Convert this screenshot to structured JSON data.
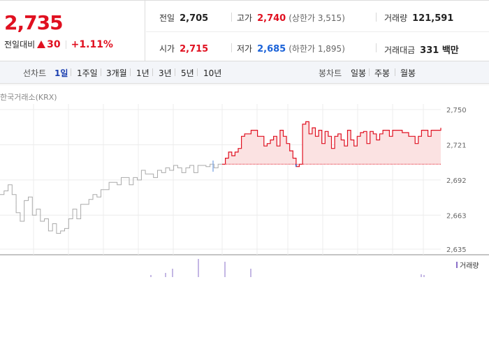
{
  "summary": {
    "current_price": "2,735",
    "change_label": "전일대비",
    "change_value": "30",
    "change_rate": "+1.11%",
    "colors": {
      "up": "#e01020",
      "down": "#1b62d8"
    }
  },
  "stats": {
    "prev_close": {
      "label": "전일",
      "value": "2,705"
    },
    "high": {
      "label": "고가",
      "value": "2,740",
      "sub": "(상한가 3,515)"
    },
    "volume": {
      "label": "거래량",
      "value": "121,591"
    },
    "open": {
      "label": "시가",
      "value": "2,715"
    },
    "low": {
      "label": "저가",
      "value": "2,685",
      "sub": "(하한가 1,895)"
    },
    "amount": {
      "label": "거래대금",
      "value": "331 백만"
    }
  },
  "line_tabs": {
    "title": "선차트",
    "items": [
      "1일",
      "1주일",
      "3개월",
      "1년",
      "3년",
      "5년",
      "10년"
    ],
    "selected": 0
  },
  "candle_tabs": {
    "title": "봉차트",
    "items": [
      "일봉",
      "주봉",
      "월봉"
    ]
  },
  "chart_source": "한국거래소(KRX)",
  "chart_data": {
    "type": "line",
    "ylim": [
      2635,
      2750
    ],
    "yticks": [
      "2,750",
      "2,721",
      "2,692",
      "2,663",
      "2,635"
    ],
    "reference_price": 2705,
    "prev_day": [
      2680,
      2683,
      2688,
      2680,
      2665,
      2658,
      2675,
      2678,
      2663,
      2668,
      2658,
      2660,
      2650,
      2656,
      2648,
      2650,
      2652,
      2660,
      2668,
      2660,
      2672,
      2672,
      2676,
      2680,
      2678,
      2684,
      2684,
      2690,
      2690,
      2688,
      2694,
      2694,
      2688,
      2694,
      2692,
      2700,
      2697,
      2697,
      2694,
      2700,
      2698,
      2702,
      2700,
      2704,
      2702,
      2698,
      2702,
      2704,
      2698,
      2704,
      2704,
      2703,
      2705,
      2702,
      2705,
      2705
    ],
    "today": [
      2705,
      2710,
      2715,
      2712,
      2715,
      2718,
      2728,
      2730,
      2730,
      2733,
      2733,
      2728,
      2728,
      2720,
      2722,
      2725,
      2728,
      2720,
      2733,
      2728,
      2722,
      2716,
      2710,
      2703,
      2705,
      2738,
      2740,
      2730,
      2735,
      2728,
      2733,
      2722,
      2732,
      2728,
      2718,
      2728,
      2730,
      2725,
      2720,
      2733,
      2725,
      2720,
      2728,
      2731,
      2732,
      2722,
      2732,
      2730,
      2725,
      2730,
      2733,
      2733,
      2728,
      2733,
      2733,
      2733,
      2731,
      2731,
      2728,
      2728,
      2722,
      2728,
      2733,
      2733,
      2728,
      2733,
      2733,
      2733,
      2735
    ],
    "volume_legend": "거래량"
  }
}
